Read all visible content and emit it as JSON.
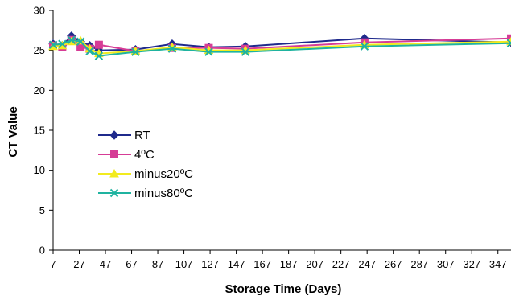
{
  "chart_data": {
    "type": "line",
    "xlabel": "Storage Time (Days)",
    "ylabel": "CT Value",
    "ylim": [
      0,
      30
    ],
    "xlim": [
      7,
      357
    ],
    "y_ticks": [
      0,
      5,
      10,
      15,
      20,
      25,
      30
    ],
    "x_ticks": [
      7,
      27,
      47,
      67,
      87,
      107,
      127,
      147,
      167,
      187,
      207,
      227,
      247,
      267,
      287,
      307,
      327,
      347
    ],
    "grid": false,
    "legend_position": "left-middle",
    "series": [
      {
        "name": "RT",
        "color": "#1F2A8C",
        "marker": "diamond",
        "x": [
          7,
          14,
          21,
          28,
          35,
          42,
          70,
          98,
          126,
          154,
          245,
          357
        ],
        "y": [
          25.8,
          25.6,
          26.8,
          26.1,
          25.6,
          25.0,
          25.1,
          25.8,
          25.4,
          25.5,
          26.5,
          26.0
        ]
      },
      {
        "name": "4ºC",
        "color": "#D63C96",
        "marker": "square",
        "x": [
          7,
          14,
          21,
          28,
          35,
          42,
          70,
          98,
          126,
          154,
          245,
          357
        ],
        "y": [
          25.6,
          25.4,
          26.3,
          25.4,
          25.2,
          25.7,
          24.9,
          25.3,
          25.3,
          25.2,
          26.0,
          26.5
        ]
      },
      {
        "name": "minus20ºC",
        "color": "#F2EB1E",
        "marker": "triangle",
        "x": [
          7,
          14,
          21,
          28,
          35,
          42,
          70,
          98,
          126,
          154,
          245,
          357
        ],
        "y": [
          25.5,
          25.6,
          26.1,
          26.2,
          25.2,
          24.6,
          24.9,
          25.4,
          25.0,
          25.0,
          25.7,
          26.1
        ]
      },
      {
        "name": "minus80ºC",
        "color": "#1FB3A0",
        "marker": "x",
        "x": [
          7,
          14,
          21,
          28,
          35,
          42,
          70,
          98,
          126,
          154,
          245,
          357
        ],
        "y": [
          25.7,
          25.8,
          26.3,
          26.1,
          24.9,
          24.3,
          24.8,
          25.2,
          24.8,
          24.8,
          25.5,
          25.9
        ]
      }
    ]
  }
}
